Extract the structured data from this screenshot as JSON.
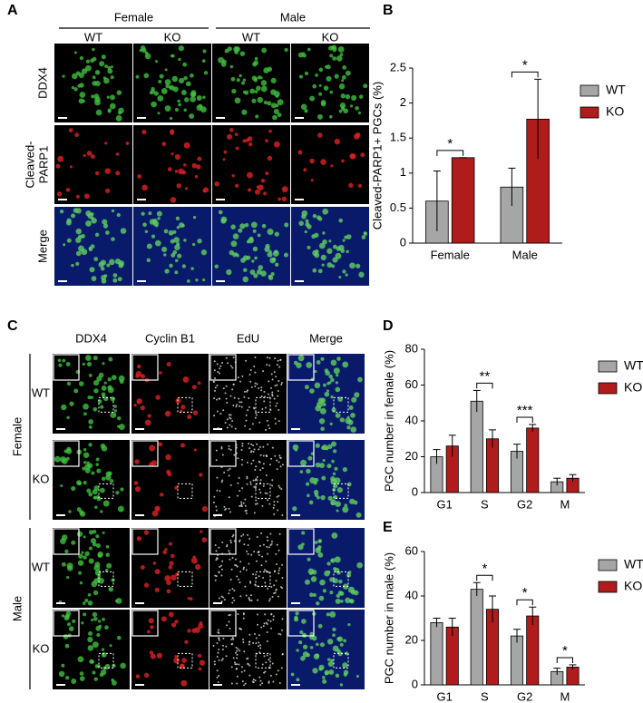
{
  "panel_labels": [
    "A",
    "B",
    "C",
    "D",
    "E"
  ],
  "panel_a": {
    "groups": [
      "Female",
      "Male"
    ],
    "genotypes": [
      "WT",
      "KO",
      "WT",
      "KO"
    ],
    "rows": [
      "DDX4",
      [
        "Cleaved-",
        "PARP1"
      ],
      "Merge"
    ]
  },
  "panel_c": {
    "columns": [
      "DDX4",
      "Cyclin B1",
      "EdU",
      "Merge"
    ],
    "groups": [
      "Female",
      "Male"
    ],
    "genotypes": [
      "WT",
      "KO",
      "WT",
      "KO"
    ]
  },
  "chart_data": [
    {
      "type": "bar",
      "y_label": "Cleaved-PARP1+ PGCs (%)",
      "categories": [
        "Female",
        "Male"
      ],
      "series": [
        {
          "name": "WT",
          "color": "#a6a6a6",
          "values": [
            0.6,
            0.8
          ],
          "errors": [
            0.43,
            0.27
          ]
        },
        {
          "name": "KO",
          "color": "#b01c1c",
          "values": [
            1.22,
            1.77
          ],
          "errors": [
            0,
            0.57
          ]
        }
      ],
      "significance": [
        "*",
        "*"
      ],
      "ylim": [
        0,
        2.5
      ],
      "yticks": [
        0,
        0.5,
        1,
        1.5,
        2,
        2.5
      ],
      "legend": "right"
    },
    {
      "type": "bar",
      "y_label": "PGC number in female (%)",
      "categories": [
        "G1",
        "S",
        "G2",
        "M"
      ],
      "series": [
        {
          "name": "WT",
          "color": "#a6a6a6",
          "values": [
            20,
            51,
            23,
            6
          ],
          "errors": [
            4,
            6,
            4,
            2
          ]
        },
        {
          "name": "KO",
          "color": "#b01c1c",
          "values": [
            26,
            30,
            36,
            8
          ],
          "errors": [
            6,
            5,
            2,
            2
          ]
        }
      ],
      "significance": [
        null,
        "**",
        "***",
        null
      ],
      "ylim": [
        0,
        80
      ],
      "yticks": [
        0,
        20,
        40,
        60,
        80
      ],
      "legend": "right"
    },
    {
      "type": "bar",
      "y_label": "PGC number in male (%)",
      "categories": [
        "G1",
        "S",
        "G2",
        "M"
      ],
      "series": [
        {
          "name": "WT",
          "color": "#a6a6a6",
          "values": [
            28,
            43,
            22,
            6
          ],
          "errors": [
            2,
            3,
            3,
            1.5
          ]
        },
        {
          "name": "KO",
          "color": "#b01c1c",
          "values": [
            26,
            34,
            31,
            8
          ],
          "errors": [
            4,
            6,
            4,
            1
          ]
        }
      ],
      "significance": [
        null,
        "*",
        "*",
        "*"
      ],
      "ylim": [
        0,
        60
      ],
      "yticks": [
        0,
        20,
        40,
        60
      ],
      "legend": "right"
    }
  ]
}
